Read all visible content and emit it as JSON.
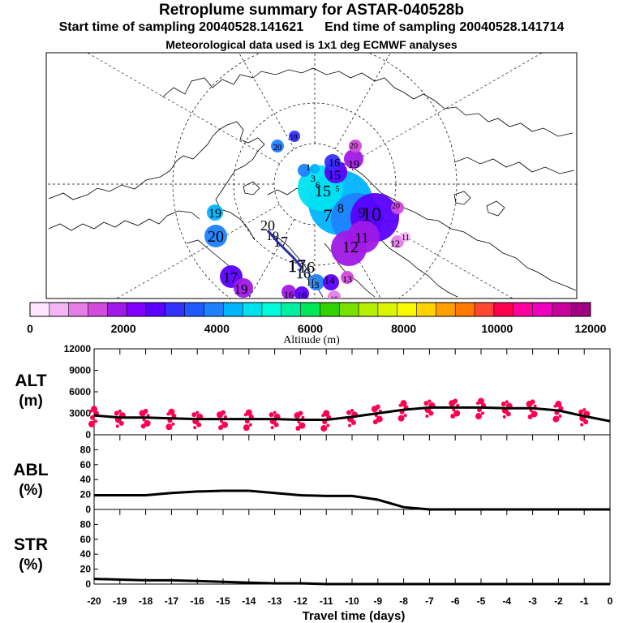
{
  "header": {
    "title": "Retroplume summary for ASTAR-040528b",
    "start_label": "Start time of sampling 20040528.141621",
    "end_label": "End time of sampling 20040528.141714",
    "met_label": "Meteorological data used is 1x1 deg ECMWF analyses"
  },
  "colorbar": {
    "label": "Altitude (m)",
    "ticks": [
      "0",
      "2000",
      "4000",
      "6000",
      "8000",
      "10000",
      "12000"
    ],
    "colors": [
      "#ffe6ff",
      "#f5b4f5",
      "#e67de6",
      "#d24bdc",
      "#a019e6",
      "#8200ff",
      "#5a00ff",
      "#3232ff",
      "#1e5aff",
      "#1e82ff",
      "#00b4ff",
      "#00e1f0",
      "#00fadc",
      "#00f0a0",
      "#00e65a",
      "#32d200",
      "#78e100",
      "#b4f000",
      "#dcf500",
      "#fafa00",
      "#ffd200",
      "#ffa000",
      "#ff7800",
      "#ff4632",
      "#ff0050",
      "#ff00a0",
      "#f000be",
      "#c8009b",
      "#a00082"
    ]
  },
  "map": {
    "plume_labels": [
      {
        "t": "20",
        "c": "#1e82ff"
      },
      {
        "t": "19",
        "c": "#00b4ff"
      },
      {
        "t": "17",
        "c": "#5a00ff"
      },
      {
        "t": "19",
        "c": "#a019e6"
      },
      {
        "t": "16",
        "c": "#a019e6"
      },
      {
        "t": "16",
        "c": "#5a00ff"
      },
      {
        "t": "18",
        "c": "#e67de6"
      },
      {
        "t": "13",
        "c": "#1e82ff"
      },
      {
        "t": "14",
        "c": "#5a00ff"
      },
      {
        "t": "13",
        "c": "#d24bdc"
      },
      {
        "t": "16",
        "c": "#1e82ff"
      },
      {
        "t": "20",
        "c": "#3232ff"
      },
      {
        "t": "19",
        "c": "#3232ff"
      },
      {
        "t": "16",
        "c": "#5a00ff"
      },
      {
        "t": "15",
        "c": "#3232ff"
      },
      {
        "t": "19",
        "c": "#a019e6"
      },
      {
        "t": "20",
        "c": "#d24bdc"
      },
      {
        "t": "15",
        "c": "#00b4ff"
      },
      {
        "t": "7",
        "c": "#00b4ff"
      },
      {
        "t": "5",
        "c": "#00b4ff"
      },
      {
        "t": "8",
        "c": "#1e82ff"
      },
      {
        "t": "9",
        "c": "#5a00ff"
      },
      {
        "t": "10",
        "c": "#5a00ff"
      },
      {
        "t": "11",
        "c": "#a019e6"
      },
      {
        "t": "12",
        "c": "#a019e6"
      },
      {
        "t": "12",
        "c": "#e67de6"
      },
      {
        "t": "11",
        "c": "#e67de6"
      },
      {
        "t": "20",
        "c": "#d24bdc"
      },
      {
        "t": "17",
        "c": "#5a00ff"
      },
      {
        "t": "20",
        "c": "#ffffff"
      },
      {
        "t": "19",
        "c": "#ffffff"
      },
      {
        "t": "17",
        "c": "#ffffff"
      },
      {
        "t": "16",
        "c": "#ffffff"
      },
      {
        "t": "16",
        "c": "#ffffff"
      },
      {
        "t": "1",
        "c": "#00b4ff"
      },
      {
        "t": "3",
        "c": "#00b4ff"
      },
      {
        "t": "6",
        "c": "#00b4ff"
      }
    ]
  },
  "chart_data": [
    {
      "type": "line",
      "panel": "ALT",
      "title": "ALT",
      "ylabel": "(m)",
      "xlabel": "Travel time (days)",
      "x": [
        -20,
        -19,
        -18,
        -17,
        -16,
        -15,
        -14,
        -13,
        -12,
        -11,
        -10,
        -9,
        -8,
        -7,
        -6,
        -5,
        -4,
        -3,
        -2,
        -1,
        0
      ],
      "values": [
        2700,
        2400,
        2400,
        2300,
        2200,
        2200,
        2200,
        2200,
        2100,
        2100,
        2500,
        3000,
        3500,
        3800,
        3800,
        3800,
        3700,
        3700,
        3400,
        2600,
        1900
      ],
      "scatter_color": "#ff0050",
      "ylim": [
        0,
        12000
      ],
      "yticks": [
        "0",
        "3000",
        "6000",
        "9000",
        "12000"
      ]
    },
    {
      "type": "line",
      "panel": "ABL",
      "title": "ABL",
      "ylabel": "(%)",
      "x": [
        -20,
        -19,
        -18,
        -17,
        -16,
        -15,
        -14,
        -13,
        -12,
        -11,
        -10,
        -9,
        -8,
        -7,
        -6,
        -5,
        -4,
        -3,
        -2,
        -1,
        0
      ],
      "values": [
        19,
        19,
        19,
        22,
        24,
        25,
        25,
        22,
        19,
        18,
        18,
        13,
        3,
        0,
        0,
        0,
        0,
        0,
        0,
        0,
        0
      ],
      "ylim": [
        0,
        100
      ],
      "yticks": [
        "0",
        "20",
        "40",
        "60",
        "80"
      ]
    },
    {
      "type": "line",
      "panel": "STR",
      "title": "STR",
      "ylabel": "(%)",
      "x": [
        -20,
        -19,
        -18,
        -17,
        -16,
        -15,
        -14,
        -13,
        -12,
        -11,
        -10,
        -9,
        -8,
        -7,
        -6,
        -5,
        -4,
        -3,
        -2,
        -1,
        0
      ],
      "values": [
        7,
        6,
        5,
        5,
        4,
        3,
        2,
        1,
        1,
        0,
        0,
        0,
        0,
        0,
        0,
        0,
        0,
        0,
        0,
        0,
        0
      ],
      "ylim": [
        0,
        100
      ],
      "yticks": [
        "0",
        "20",
        "40",
        "60",
        "80"
      ]
    }
  ],
  "xaxis": {
    "label": "Travel time (days)",
    "ticks": [
      "-20",
      "-19",
      "-18",
      "-17",
      "-16",
      "-15",
      "-14",
      "-13",
      "-12",
      "-11",
      "-10",
      "-9",
      "-8",
      "-7",
      "-6",
      "-5",
      "-4",
      "-3",
      "-2",
      "-1",
      "0"
    ]
  }
}
